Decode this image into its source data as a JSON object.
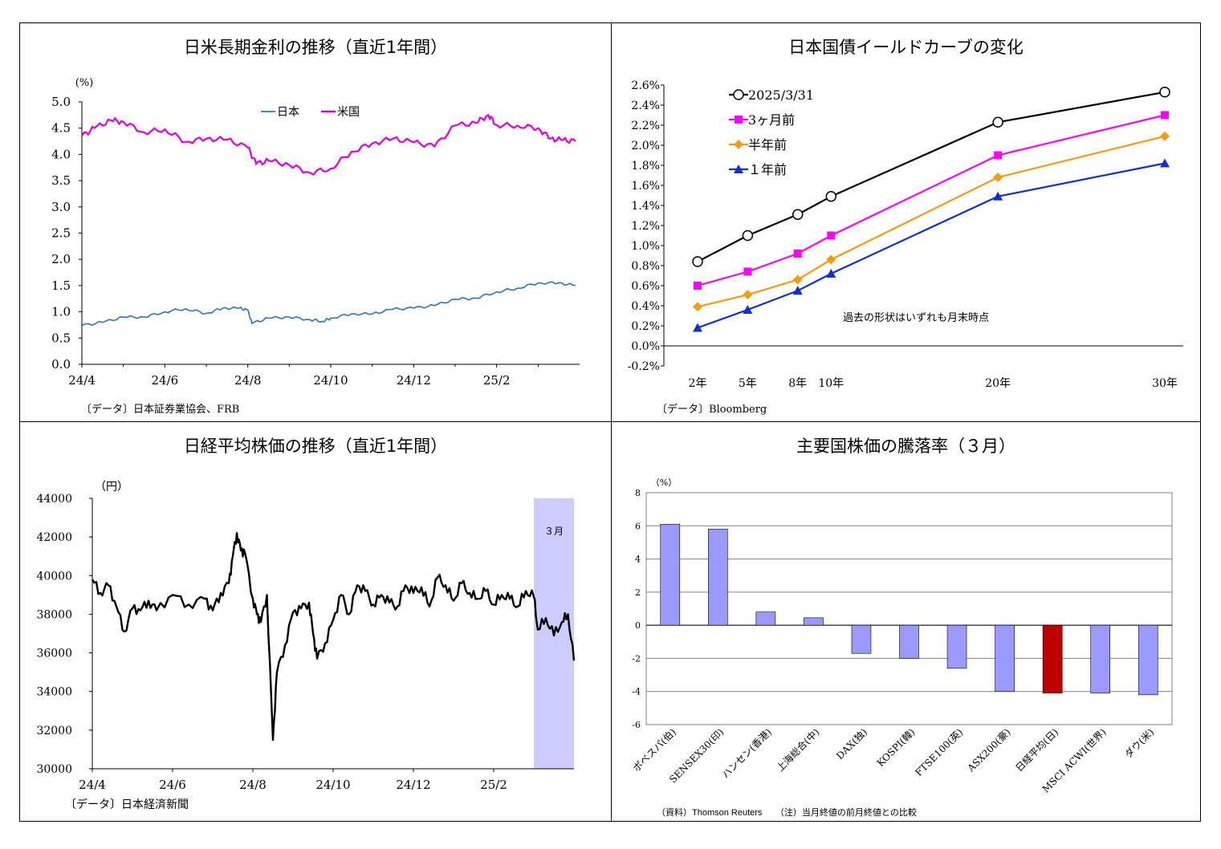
{
  "charts": [
    {
      "title": "日米長期金利の推移（直近1年間）",
      "source": "〔データ〕日本証券業協会、FRB",
      "unit": "(%)",
      "legend": [
        "日本",
        "米国"
      ]
    },
    {
      "title": "日本国債イールドカーブの変化",
      "source": "〔データ〕Bloomberg",
      "note": "過去の形状はいずれも月末時点",
      "legend": [
        "2025/3/31",
        "3ヶ月前",
        "半年前",
        "１年前"
      ]
    },
    {
      "title": "日経平均株価の推移（直近1年間）",
      "source": "〔データ〕日本経済新聞",
      "unit": "（円）",
      "highlight_label": "３月"
    },
    {
      "title": "主要国株価の騰落率（３月）",
      "unit": "（%）",
      "source": "（資料）Thomson Reuters　　（注）当月終値の前月終値との比較"
    }
  ],
  "chart_data": [
    {
      "type": "line",
      "title": "日米長期金利の推移（直近1年間）",
      "xlabel": "",
      "ylabel": "(%)",
      "ylim": [
        0,
        5.0
      ],
      "yticks": [
        "0.0",
        "0.5",
        "1.0",
        "1.5",
        "2.0",
        "2.5",
        "3.0",
        "3.5",
        "4.0",
        "4.5",
        "5.0"
      ],
      "xticks": [
        "24/4",
        "24/6",
        "24/8",
        "24/10",
        "24/12",
        "25/2"
      ],
      "x_range_months": [
        0,
        12
      ],
      "legend_position": "top-center",
      "series": [
        {
          "name": "日本",
          "color": "#2e75b6",
          "x": [
            0,
            0.5,
            1,
            1.5,
            2,
            2.5,
            3,
            3.4,
            3.8,
            4,
            4.1,
            4.5,
            5,
            5.5,
            5.8,
            6,
            6.5,
            7,
            7.5,
            8,
            8.5,
            9,
            9.5,
            10,
            10.5,
            11,
            11.5,
            11.9
          ],
          "y": [
            0.74,
            0.8,
            0.9,
            0.9,
            1.0,
            1.06,
            0.97,
            1.07,
            1.07,
            1.03,
            0.78,
            0.88,
            0.9,
            0.85,
            0.82,
            0.88,
            0.96,
            0.96,
            1.05,
            1.07,
            1.12,
            1.24,
            1.26,
            1.38,
            1.45,
            1.55,
            1.55,
            1.5
          ]
        },
        {
          "name": "米国",
          "color": "#e000e0",
          "x": [
            0,
            0.3,
            0.7,
            1,
            1.5,
            2,
            2.5,
            3,
            3.5,
            4,
            4.2,
            4.5,
            5,
            5.5,
            6,
            6.5,
            7,
            7.5,
            8,
            8.5,
            9,
            9.5,
            9.8,
            10,
            10.5,
            11,
            11.3,
            11.6,
            11.9
          ],
          "y": [
            4.35,
            4.5,
            4.65,
            4.62,
            4.42,
            4.48,
            4.24,
            4.3,
            4.28,
            4.13,
            3.82,
            3.88,
            3.8,
            3.65,
            3.73,
            4.05,
            4.21,
            4.3,
            4.23,
            4.15,
            4.55,
            4.6,
            4.75,
            4.56,
            4.55,
            4.5,
            4.3,
            4.27,
            4.25
          ]
        }
      ]
    },
    {
      "type": "line",
      "title": "日本国債イールドカーブの変化",
      "categories": [
        "2年",
        "5年",
        "8年",
        "10年",
        "20年",
        "30年"
      ],
      "x": [
        2,
        5,
        8,
        10,
        20,
        30
      ],
      "ylim": [
        -0.2,
        2.6
      ],
      "yticks": [
        "2.6%",
        "2.4%",
        "2.2%",
        "2.0%",
        "1.8%",
        "1.6%",
        "1.4%",
        "1.2%",
        "1.0%",
        "0.8%",
        "0.6%",
        "0.4%",
        "0.2%",
        "0.0%",
        "-0.2%"
      ],
      "legend_position": "top-left",
      "series": [
        {
          "name": "2025/3/31",
          "color": "#000000",
          "marker": "circle",
          "values": [
            0.84,
            1.1,
            1.31,
            1.49,
            2.23,
            2.53
          ]
        },
        {
          "name": "3ヶ月前",
          "color": "#ff00ff",
          "marker": "square",
          "values": [
            0.6,
            0.74,
            0.92,
            1.1,
            1.9,
            2.3
          ]
        },
        {
          "name": "半年前",
          "color": "#f39c12",
          "marker": "diamond",
          "values": [
            0.39,
            0.51,
            0.66,
            0.86,
            1.68,
            2.09
          ]
        },
        {
          "name": "１年前",
          "color": "#1030d0",
          "marker": "triangle",
          "values": [
            0.18,
            0.36,
            0.55,
            0.72,
            1.49,
            1.82
          ]
        }
      ]
    },
    {
      "type": "line",
      "title": "日経平均株価の推移（直近1年間）",
      "ylabel": "（円）",
      "ylim": [
        30000,
        44000
      ],
      "yticks": [
        "44000",
        "42000",
        "40000",
        "38000",
        "36000",
        "34000",
        "32000",
        "30000"
      ],
      "xticks": [
        "24/4",
        "24/6",
        "24/8",
        "24/10",
        "24/12",
        "25/2"
      ],
      "x_range_months": [
        0,
        12
      ],
      "highlight_range": [
        11,
        12
      ],
      "series": [
        {
          "name": "",
          "color": "#000000",
          "x": [
            0,
            0.2,
            0.4,
            0.6,
            0.8,
            1.0,
            1.2,
            1.4,
            1.6,
            2.0,
            2.4,
            2.8,
            3.0,
            3.2,
            3.4,
            3.5,
            3.6,
            3.7,
            3.8,
            4.0,
            4.1,
            4.2,
            4.35,
            4.5,
            4.6,
            4.8,
            5.0,
            5.2,
            5.4,
            5.5,
            5.6,
            5.8,
            6.0,
            6.2,
            6.4,
            6.6,
            6.8,
            7.0,
            7.2,
            7.4,
            7.6,
            7.8,
            8.0,
            8.2,
            8.4,
            8.6,
            8.8,
            9.0,
            9.2,
            9.4,
            9.6,
            9.8,
            10.0,
            10.2,
            10.4,
            10.6,
            10.8,
            11.0,
            11.1,
            11.3,
            11.5,
            11.7,
            11.85,
            12.0
          ],
          "y": [
            39800,
            39100,
            39500,
            38400,
            37100,
            38300,
            38200,
            38700,
            38200,
            39000,
            38500,
            38800,
            38200,
            39100,
            39600,
            41000,
            42200,
            41300,
            41200,
            38800,
            38000,
            37600,
            39000,
            31500,
            35000,
            36400,
            38100,
            38300,
            38600,
            37000,
            35700,
            36500,
            37700,
            39000,
            38000,
            39500,
            39200,
            38500,
            39000,
            38600,
            38400,
            39500,
            39100,
            39400,
            38400,
            39900,
            39500,
            38700,
            39600,
            39100,
            38800,
            39200,
            38500,
            39000,
            38800,
            38400,
            39200,
            38900,
            37200,
            37800,
            36900,
            37600,
            38000,
            35600
          ]
        }
      ]
    },
    {
      "type": "bar",
      "title": "主要国株価の騰落率（３月）",
      "ylabel": "（%）",
      "ylim": [
        -6,
        8
      ],
      "yticks": [
        "8",
        "6",
        "4",
        "2",
        "0",
        "-2",
        "-4",
        "-6"
      ],
      "categories": [
        "ボベスパ(伯)",
        "SENSEX30(印)",
        "ハンセン(香港)",
        "上海総合(中)",
        "DAX(独)",
        "KOSPI(韓)",
        "FTSE100(英)",
        "ASX200(豪)",
        "日経平均(日)",
        "MSCI ACWI(世界)",
        "ダウ(米)"
      ],
      "values": [
        6.1,
        5.8,
        0.8,
        0.45,
        -1.7,
        -2.0,
        -2.6,
        -4.0,
        -4.1,
        -4.1,
        -4.2
      ],
      "colors": {
        "default": "#9999ff",
        "highlight": "#c00000"
      },
      "highlight_index": 8
    }
  ]
}
